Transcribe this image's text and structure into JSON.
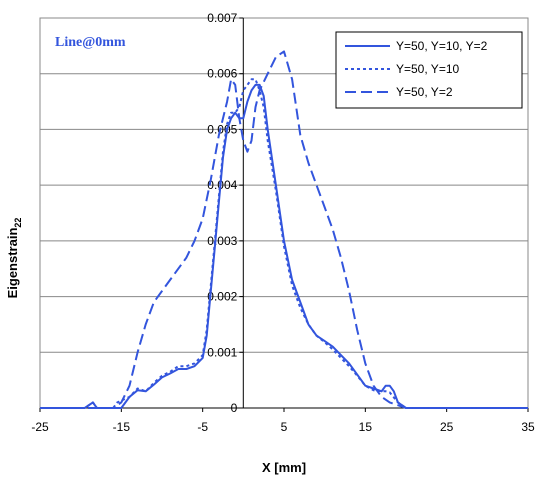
{
  "chart_data": {
    "type": "line",
    "title": "",
    "annotation": "Line@0mm",
    "xlabel": "X [mm]",
    "ylabel_main": "Eigenstrain",
    "ylabel_sub": "22",
    "xlim": [
      -25,
      35
    ],
    "ylim": [
      0,
      0.007
    ],
    "xticks": [
      "-25",
      "-15",
      "-5",
      "5",
      "15",
      "25",
      "35"
    ],
    "yticks": [
      "0",
      "0.001",
      "0.002",
      "0.003",
      "0.004",
      "0.005",
      "0.006",
      "0.007"
    ],
    "ytick_values": [
      0,
      0.001,
      0.002,
      0.003,
      0.004,
      0.005,
      0.006,
      0.007
    ],
    "xtick_values": [
      -25,
      -15,
      -5,
      5,
      15,
      25,
      35
    ],
    "grid": "horizontal",
    "legend_position": "top-right",
    "line_color": "#3355dd",
    "series": [
      {
        "name": "Y=50, Y=10, Y=2",
        "style": "solid",
        "points": [
          [
            -25,
            0
          ],
          [
            -19.5,
            0
          ],
          [
            -18.5,
            0.0001
          ],
          [
            -18,
            0
          ],
          [
            -15,
            0
          ],
          [
            -14,
            0.0002
          ],
          [
            -13,
            0.00032
          ],
          [
            -12,
            0.0003
          ],
          [
            -11,
            0.00042
          ],
          [
            -10,
            0.00055
          ],
          [
            -9,
            0.00062
          ],
          [
            -8,
            0.0007
          ],
          [
            -7,
            0.0007
          ],
          [
            -6,
            0.00075
          ],
          [
            -5,
            0.0009
          ],
          [
            -4.5,
            0.0013
          ],
          [
            -4,
            0.0021
          ],
          [
            -3.5,
            0.0029
          ],
          [
            -3,
            0.0037
          ],
          [
            -2.5,
            0.0045
          ],
          [
            -2,
            0.005
          ],
          [
            -1.5,
            0.0052
          ],
          [
            -1,
            0.0053
          ],
          [
            -0.5,
            0.0052
          ],
          [
            0,
            0.0052
          ],
          [
            0.5,
            0.0055
          ],
          [
            1,
            0.0057
          ],
          [
            1.5,
            0.0058
          ],
          [
            2,
            0.0058
          ],
          [
            2.5,
            0.0056
          ],
          [
            3,
            0.005
          ],
          [
            4,
            0.004
          ],
          [
            5,
            0.003
          ],
          [
            6,
            0.0023
          ],
          [
            7,
            0.0019
          ],
          [
            8,
            0.0015
          ],
          [
            9,
            0.0013
          ],
          [
            10,
            0.0012
          ],
          [
            11,
            0.0011
          ],
          [
            12,
            0.00095
          ],
          [
            13,
            0.0008
          ],
          [
            14,
            0.0006
          ],
          [
            15,
            0.0004
          ],
          [
            16,
            0.00035
          ],
          [
            17,
            0.0003
          ],
          [
            17.5,
            0.0004
          ],
          [
            18,
            0.0004
          ],
          [
            18.5,
            0.0003
          ],
          [
            19,
            0.0001
          ],
          [
            20,
            0
          ],
          [
            35,
            0
          ]
        ]
      },
      {
        "name": "Y=50, Y=10",
        "style": "dotted",
        "points": [
          [
            -25,
            0
          ],
          [
            -19.5,
            0
          ],
          [
            -18.5,
            0.0001
          ],
          [
            -18,
            0
          ],
          [
            -16,
            0
          ],
          [
            -15.5,
            0.0001
          ],
          [
            -14,
            0.0002
          ],
          [
            -13,
            0.00035
          ],
          [
            -12,
            0.0003
          ],
          [
            -11,
            0.00045
          ],
          [
            -10,
            0.00058
          ],
          [
            -9,
            0.00065
          ],
          [
            -8,
            0.00075
          ],
          [
            -7,
            0.00075
          ],
          [
            -6,
            0.0008
          ],
          [
            -5,
            0.00095
          ],
          [
            -4.5,
            0.0014
          ],
          [
            -4,
            0.0022
          ],
          [
            -3.5,
            0.003
          ],
          [
            -3,
            0.0038
          ],
          [
            -2.5,
            0.0046
          ],
          [
            -2,
            0.0051
          ],
          [
            -1.5,
            0.0053
          ],
          [
            -1,
            0.0053
          ],
          [
            -0.5,
            0.0054
          ],
          [
            0,
            0.0057
          ],
          [
            0.5,
            0.0058
          ],
          [
            1,
            0.0059
          ],
          [
            1.5,
            0.0059
          ],
          [
            2,
            0.0057
          ],
          [
            2.5,
            0.0054
          ],
          [
            3,
            0.0048
          ],
          [
            4,
            0.0039
          ],
          [
            5,
            0.0029
          ],
          [
            6,
            0.0022
          ],
          [
            7,
            0.0018
          ],
          [
            8,
            0.0015
          ],
          [
            9,
            0.0013
          ],
          [
            10,
            0.00118
          ],
          [
            11,
            0.00105
          ],
          [
            12,
            0.0009
          ],
          [
            13,
            0.00075
          ],
          [
            14,
            0.00058
          ],
          [
            15,
            0.0004
          ],
          [
            16,
            0.00032
          ],
          [
            17,
            0.0003
          ],
          [
            17.5,
            0.0003
          ],
          [
            18,
            0.00028
          ],
          [
            19,
            0.0001
          ],
          [
            20,
            0
          ],
          [
            35,
            0
          ]
        ]
      },
      {
        "name": "Y=50, Y=2",
        "style": "dashed",
        "points": [
          [
            -25,
            0
          ],
          [
            -16,
            0
          ],
          [
            -15,
            0.0001
          ],
          [
            -14,
            0.0004
          ],
          [
            -13,
            0.001
          ],
          [
            -12,
            0.0015
          ],
          [
            -11,
            0.0019
          ],
          [
            -10,
            0.0021
          ],
          [
            -9,
            0.0023
          ],
          [
            -8,
            0.0025
          ],
          [
            -7,
            0.0027
          ],
          [
            -6,
            0.003
          ],
          [
            -5,
            0.0034
          ],
          [
            -4,
            0.0041
          ],
          [
            -3,
            0.0049
          ],
          [
            -2,
            0.0055
          ],
          [
            -1.5,
            0.0059
          ],
          [
            -1,
            0.0058
          ],
          [
            -0.5,
            0.0052
          ],
          [
            0,
            0.0048
          ],
          [
            0.5,
            0.0046
          ],
          [
            1,
            0.0048
          ],
          [
            1.5,
            0.0054
          ],
          [
            2,
            0.0057
          ],
          [
            3,
            0.006
          ],
          [
            4,
            0.0063
          ],
          [
            5,
            0.0064
          ],
          [
            6,
            0.0059
          ],
          [
            7,
            0.0049
          ],
          [
            8,
            0.0044
          ],
          [
            9,
            0.004
          ],
          [
            10,
            0.0036
          ],
          [
            11,
            0.0032
          ],
          [
            12,
            0.0027
          ],
          [
            13,
            0.0021
          ],
          [
            14,
            0.0014
          ],
          [
            15,
            0.0008
          ],
          [
            16,
            0.0004
          ],
          [
            17,
            0.0002
          ],
          [
            18,
            0.0001
          ],
          [
            19,
            5e-05
          ],
          [
            20,
            0
          ],
          [
            35,
            0
          ]
        ]
      }
    ]
  }
}
